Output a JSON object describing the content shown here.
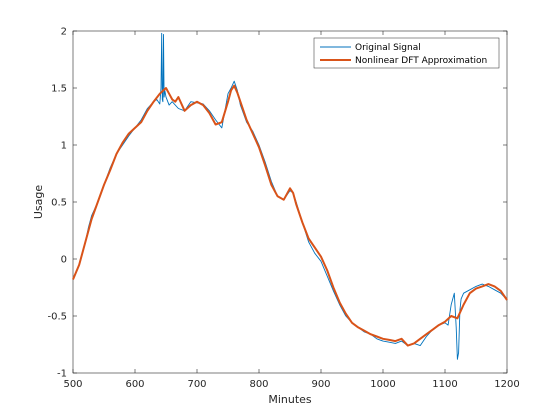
{
  "chart_data": {
    "type": "line",
    "title": "",
    "xlabel": "Minutes",
    "ylabel": "Usage",
    "xlim": [
      500,
      1200
    ],
    "ylim": [
      -1,
      2
    ],
    "xticks": [
      500,
      600,
      700,
      800,
      900,
      1000,
      1100,
      1200
    ],
    "yticks": [
      -1,
      -0.5,
      0,
      0.5,
      1,
      1.5,
      2
    ],
    "xtick_labels": [
      "500",
      "600",
      "700",
      "800",
      "900",
      "1000",
      "1100",
      "1200"
    ],
    "ytick_labels": [
      "-1",
      "-0.5",
      "0",
      "0.5",
      "1",
      "1.5",
      "2"
    ],
    "grid": false,
    "legend_position": "top-right",
    "series": [
      {
        "name": "Original Signal",
        "color": "#0072BD",
        "x": [
          500,
          505,
          510,
          515,
          520,
          525,
          530,
          540,
          550,
          560,
          570,
          580,
          590,
          600,
          610,
          620,
          630,
          635,
          640,
          642,
          643,
          644,
          645,
          646,
          647,
          648,
          650,
          655,
          660,
          670,
          680,
          690,
          700,
          710,
          720,
          730,
          740,
          745,
          750,
          755,
          760,
          765,
          770,
          780,
          790,
          800,
          810,
          820,
          830,
          840,
          850,
          855,
          860,
          870,
          880,
          890,
          900,
          910,
          920,
          930,
          940,
          950,
          960,
          970,
          980,
          990,
          1000,
          1010,
          1020,
          1030,
          1040,
          1050,
          1060,
          1070,
          1080,
          1090,
          1100,
          1105,
          1110,
          1115,
          1118,
          1120,
          1122,
          1124,
          1126,
          1130,
          1140,
          1150,
          1160,
          1170,
          1180,
          1190,
          1200
        ],
        "y": [
          -0.18,
          -0.12,
          -0.05,
          0.05,
          0.15,
          0.28,
          0.38,
          0.5,
          0.65,
          0.8,
          0.92,
          1.0,
          1.08,
          1.15,
          1.22,
          1.32,
          1.38,
          1.4,
          1.36,
          1.5,
          1.98,
          1.4,
          1.38,
          1.97,
          1.42,
          1.48,
          1.42,
          1.35,
          1.38,
          1.32,
          1.3,
          1.38,
          1.37,
          1.36,
          1.3,
          1.22,
          1.15,
          1.3,
          1.45,
          1.5,
          1.56,
          1.48,
          1.35,
          1.2,
          1.12,
          1.0,
          0.85,
          0.68,
          0.55,
          0.52,
          0.6,
          0.58,
          0.5,
          0.32,
          0.15,
          0.05,
          -0.02,
          -0.15,
          -0.28,
          -0.4,
          -0.5,
          -0.56,
          -0.6,
          -0.64,
          -0.66,
          -0.7,
          -0.72,
          -0.73,
          -0.74,
          -0.72,
          -0.76,
          -0.74,
          -0.76,
          -0.68,
          -0.62,
          -0.58,
          -0.56,
          -0.58,
          -0.4,
          -0.3,
          -0.6,
          -0.88,
          -0.82,
          -0.45,
          -0.35,
          -0.3,
          -0.27,
          -0.24,
          -0.22,
          -0.24,
          -0.27,
          -0.3,
          -0.36
        ]
      },
      {
        "name": "Nonlinear DFT Approximation",
        "color": "#D95319",
        "x": [
          500,
          510,
          520,
          530,
          540,
          550,
          560,
          570,
          580,
          590,
          600,
          610,
          620,
          630,
          640,
          650,
          655,
          660,
          665,
          670,
          680,
          690,
          700,
          710,
          720,
          730,
          740,
          750,
          755,
          760,
          765,
          770,
          780,
          790,
          800,
          810,
          820,
          830,
          840,
          850,
          855,
          860,
          870,
          880,
          890,
          900,
          910,
          920,
          930,
          940,
          950,
          960,
          970,
          980,
          990,
          1000,
          1010,
          1020,
          1030,
          1040,
          1050,
          1060,
          1070,
          1080,
          1090,
          1100,
          1110,
          1120,
          1130,
          1140,
          1150,
          1160,
          1170,
          1180,
          1190,
          1200
        ],
        "y": [
          -0.18,
          -0.05,
          0.15,
          0.35,
          0.5,
          0.65,
          0.78,
          0.92,
          1.02,
          1.1,
          1.15,
          1.2,
          1.3,
          1.38,
          1.45,
          1.5,
          1.45,
          1.4,
          1.38,
          1.42,
          1.3,
          1.35,
          1.38,
          1.35,
          1.28,
          1.18,
          1.2,
          1.38,
          1.48,
          1.52,
          1.46,
          1.38,
          1.22,
          1.1,
          0.98,
          0.82,
          0.65,
          0.55,
          0.52,
          0.62,
          0.58,
          0.48,
          0.32,
          0.18,
          0.1,
          0.02,
          -0.1,
          -0.25,
          -0.38,
          -0.48,
          -0.56,
          -0.6,
          -0.63,
          -0.66,
          -0.68,
          -0.7,
          -0.71,
          -0.72,
          -0.7,
          -0.76,
          -0.74,
          -0.7,
          -0.66,
          -0.62,
          -0.58,
          -0.55,
          -0.5,
          -0.52,
          -0.4,
          -0.3,
          -0.26,
          -0.24,
          -0.22,
          -0.24,
          -0.28,
          -0.36
        ]
      }
    ]
  }
}
